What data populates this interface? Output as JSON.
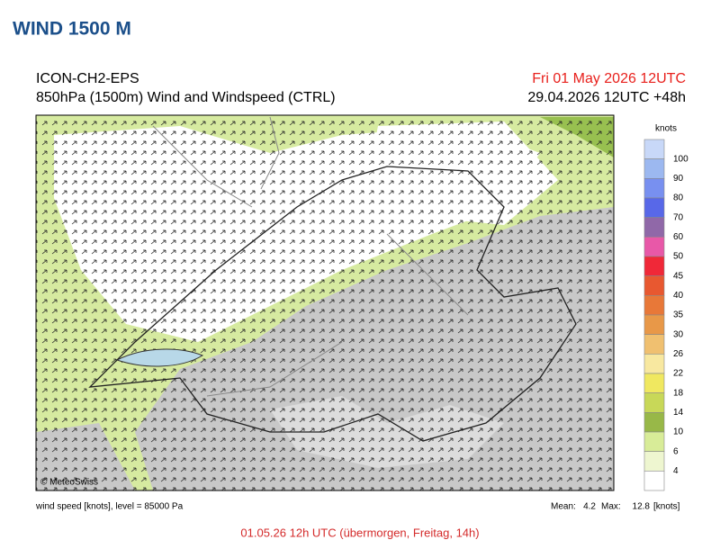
{
  "page_title": "WIND 1500 M",
  "header": {
    "model": "ICON-CH2-EPS",
    "field": "850hPa (1500m) Wind and Windspeed (CTRL)",
    "valid": "Fri 01 May 2026 12UTC",
    "run": "29.04.2026 12UTC +48h"
  },
  "colorbar": {
    "unit": "knots",
    "labels": [
      "100",
      "90",
      "80",
      "70",
      "60",
      "50",
      "45",
      "40",
      "35",
      "30",
      "26",
      "22",
      "18",
      "14",
      "10",
      "6",
      "4"
    ],
    "colors": [
      "#c8d8f8",
      "#9cb8f0",
      "#7890f0",
      "#5868e8",
      "#9068a8",
      "#e858a8",
      "#f02838",
      "#e85830",
      "#e87838",
      "#e89848",
      "#f0c070",
      "#f8e8a0",
      "#f0e860",
      "#c8d858",
      "#98b848",
      "#d8ec98",
      "#eef6d0",
      "#ffffff"
    ]
  },
  "map": {
    "copyright": "© MeteoSwiss"
  },
  "footer": {
    "left": "wind speed [knots], level = 85000 Pa",
    "mean_label": "Mean:",
    "mean": "4.2",
    "max_label": "Max:",
    "max": "12.8",
    "unit": "[knots]"
  },
  "caption": "01.05.26 12h UTC (übermorgen, Freitag, 14h)"
}
